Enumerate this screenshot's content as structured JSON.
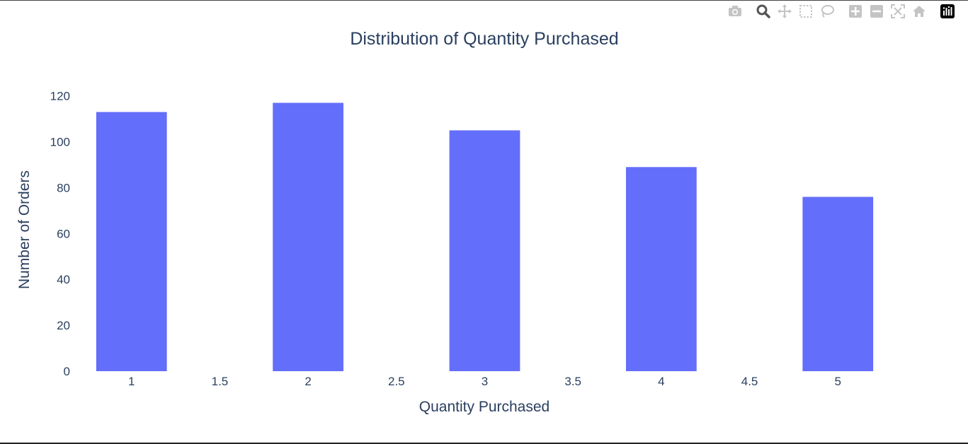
{
  "modebar": {
    "buttons": [
      {
        "icon": "camera-icon"
      },
      {
        "icon": "zoom-icon"
      },
      {
        "icon": "pan-icon"
      },
      {
        "icon": "box-select-icon"
      },
      {
        "icon": "lasso-select-icon"
      },
      {
        "icon": "zoom-in-icon"
      },
      {
        "icon": "zoom-out-icon"
      },
      {
        "icon": "autoscale-icon"
      },
      {
        "icon": "reset-axes-icon"
      },
      {
        "icon": "plotly-logo-icon"
      }
    ]
  },
  "chart_data": {
    "type": "bar",
    "title": "Distribution of Quantity Purchased",
    "xlabel": "Quantity Purchased",
    "ylabel": "Number of Orders",
    "x": [
      1,
      2,
      3,
      4,
      5
    ],
    "values": [
      113,
      117,
      105,
      89,
      76
    ],
    "xlim": [
      0.6,
      5.4
    ],
    "ylim": [
      0,
      123
    ],
    "xticks": [
      "1",
      "1.5",
      "2",
      "2.5",
      "3",
      "3.5",
      "4",
      "4.5",
      "5"
    ],
    "xtick_values": [
      1,
      1.5,
      2,
      2.5,
      3,
      3.5,
      4,
      4.5,
      5
    ],
    "yticks": [
      0,
      20,
      40,
      60,
      80,
      100,
      120
    ],
    "bar_color": "#636efa",
    "grid": false,
    "legend": "none"
  }
}
